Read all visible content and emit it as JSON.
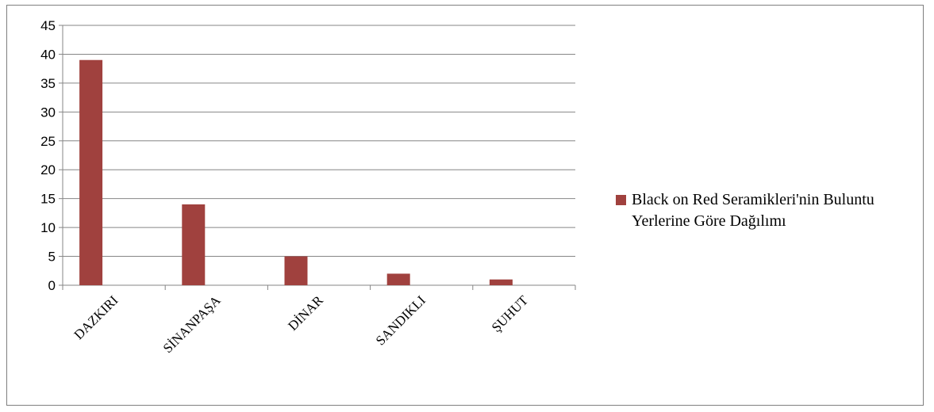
{
  "chart_data": {
    "type": "bar",
    "categories": [
      "DAZKIRI",
      "SİNANPAŞA",
      "DİNAR",
      "SANDIKLI",
      "ŞUHUT"
    ],
    "series": [
      {
        "name": "Black on Red Seramikleri'nin Buluntu Yerlerine Göre Dağılımı",
        "values": [
          39,
          14,
          5,
          2,
          1
        ],
        "color": "#A0413E"
      }
    ],
    "ylim": [
      0,
      45
    ],
    "yticks": [
      "0",
      "5",
      "10",
      "15",
      "20",
      "25",
      "30",
      "35",
      "40",
      "45"
    ],
    "grid": true,
    "legend_position": "right",
    "title": "",
    "xlabel": "",
    "ylabel": ""
  },
  "legend": {
    "label": "Black on Red Seramikleri'nin Buluntu Yerlerine Göre Dağılımı"
  }
}
